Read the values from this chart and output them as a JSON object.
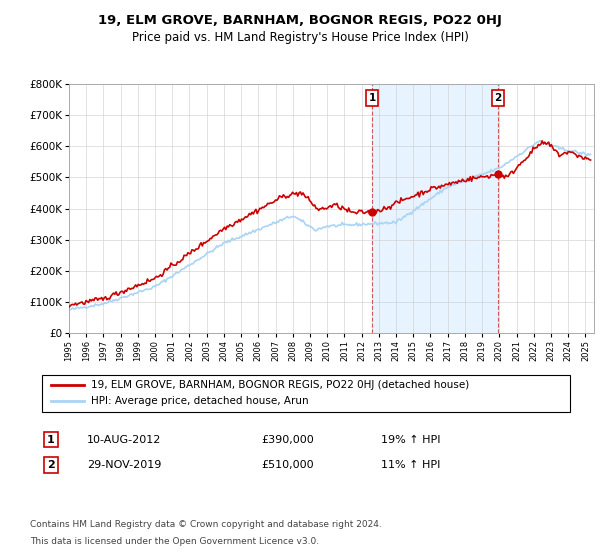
{
  "title": "19, ELM GROVE, BARNHAM, BOGNOR REGIS, PO22 0HJ",
  "subtitle": "Price paid vs. HM Land Registry's House Price Index (HPI)",
  "ylim": [
    0,
    800000
  ],
  "yticks": [
    0,
    100000,
    200000,
    300000,
    400000,
    500000,
    600000,
    700000,
    800000
  ],
  "ytick_labels": [
    "£0",
    "£100K",
    "£200K",
    "£300K",
    "£400K",
    "£500K",
    "£600K",
    "£700K",
    "£800K"
  ],
  "xlim_min": 1995,
  "xlim_max": 2025.5,
  "legend_house": "19, ELM GROVE, BARNHAM, BOGNOR REGIS, PO22 0HJ (detached house)",
  "legend_hpi": "HPI: Average price, detached house, Arun",
  "annotation1_label": "1",
  "annotation1_date": "10-AUG-2012",
  "annotation1_price": "£390,000",
  "annotation1_hpi": "19% ↑ HPI",
  "annotation2_label": "2",
  "annotation2_date": "29-NOV-2019",
  "annotation2_price": "£510,000",
  "annotation2_hpi": "11% ↑ HPI",
  "footnote_line1": "Contains HM Land Registry data © Crown copyright and database right 2024.",
  "footnote_line2": "This data is licensed under the Open Government Licence v3.0.",
  "red_color": "#cc0000",
  "blue_color": "#aad4f5",
  "sale1_x": 2012.614,
  "sale1_y": 390000,
  "sale2_x": 2019.914,
  "sale2_y": 510000,
  "vline1_x": 2012.614,
  "vline2_x": 2019.914,
  "bg_color": "#ddeeff",
  "grid_color": "#cccccc",
  "title_fontsize": 9.5,
  "subtitle_fontsize": 8.5,
  "tick_fontsize": 7.5,
  "legend_fontsize": 7.5,
  "ann_fontsize": 8
}
